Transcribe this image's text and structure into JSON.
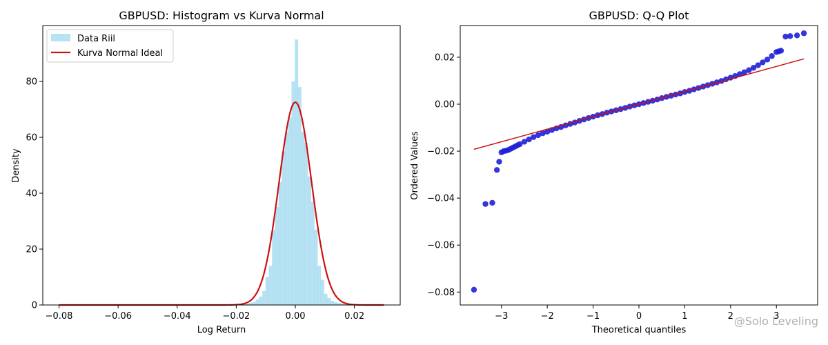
{
  "watermark": "@Solo Leveling",
  "chart_data": [
    {
      "type": "histogram",
      "title": "GBPUSD: Histogram vs Kurva Normal",
      "xlabel": "Log Return",
      "ylabel": "Density",
      "xlim": [
        -0.0855,
        0.0355
      ],
      "ylim": [
        0,
        100
      ],
      "xticks": [
        -0.08,
        -0.06,
        -0.04,
        -0.02,
        0.0,
        0.02
      ],
      "xtick_labels": [
        "−0.08",
        "−0.06",
        "−0.04",
        "−0.02",
        "0.00",
        "0.02"
      ],
      "yticks": [
        0,
        20,
        40,
        60,
        80
      ],
      "ytick_labels": [
        "0",
        "20",
        "40",
        "60",
        "80"
      ],
      "legend_position": "top-left",
      "colors": {
        "bars": "#87ceeb",
        "curve": "#cc1111"
      },
      "histogram": {
        "name": "Data Riil",
        "bin_width": 0.0011,
        "bins": [
          {
            "x0": -0.02,
            "density": 0.3
          },
          {
            "x0": -0.0189,
            "density": 0.4
          },
          {
            "x0": -0.0178,
            "density": 0.5
          },
          {
            "x0": -0.0167,
            "density": 0.6
          },
          {
            "x0": -0.0156,
            "density": 0.8
          },
          {
            "x0": -0.0145,
            "density": 1.0
          },
          {
            "x0": -0.0134,
            "density": 2
          },
          {
            "x0": -0.0123,
            "density": 3
          },
          {
            "x0": -0.0112,
            "density": 5
          },
          {
            "x0": -0.0101,
            "density": 10
          },
          {
            "x0": -0.009,
            "density": 14
          },
          {
            "x0": -0.0079,
            "density": 27
          },
          {
            "x0": -0.0068,
            "density": 35
          },
          {
            "x0": -0.0057,
            "density": 44
          },
          {
            "x0": -0.0046,
            "density": 55
          },
          {
            "x0": -0.0035,
            "density": 62
          },
          {
            "x0": -0.0024,
            "density": 67
          },
          {
            "x0": -0.0013,
            "density": 80
          },
          {
            "x0": -0.0002,
            "density": 95
          },
          {
            "x0": 0.0009,
            "density": 78
          },
          {
            "x0": 0.002,
            "density": 62
          },
          {
            "x0": 0.0031,
            "density": 58
          },
          {
            "x0": 0.0042,
            "density": 46
          },
          {
            "x0": 0.0053,
            "density": 37
          },
          {
            "x0": 0.0064,
            "density": 27
          },
          {
            "x0": 0.0075,
            "density": 14
          },
          {
            "x0": 0.0086,
            "density": 9
          },
          {
            "x0": 0.0097,
            "density": 4
          },
          {
            "x0": 0.0108,
            "density": 2.5
          },
          {
            "x0": 0.0119,
            "density": 1.5
          },
          {
            "x0": 0.013,
            "density": 1.0
          },
          {
            "x0": 0.0141,
            "density": 0.8
          },
          {
            "x0": 0.0152,
            "density": 0.6
          },
          {
            "x0": 0.0163,
            "density": 0.4
          },
          {
            "x0": 0.0174,
            "density": 0.3
          }
        ]
      },
      "normal_curve": {
        "name": "Kurva Normal Ideal",
        "mean": 0.0,
        "std": 0.0055,
        "x_range": [
          -0.08,
          0.03
        ]
      }
    },
    {
      "type": "scatter",
      "title": "GBPUSD: Q-Q Plot",
      "xlabel": "Theoretical quantiles",
      "ylabel": "Ordered Values",
      "xlim": [
        -3.9,
        3.9
      ],
      "ylim": [
        -0.0855,
        0.0335
      ],
      "xticks": [
        -3,
        -2,
        -1,
        0,
        1,
        2,
        3
      ],
      "xtick_labels": [
        "−3",
        "−2",
        "−1",
        "0",
        "1",
        "2",
        "3"
      ],
      "yticks": [
        -0.08,
        -0.06,
        -0.04,
        -0.02,
        0.0,
        0.02
      ],
      "ytick_labels": [
        "−0.08",
        "−0.06",
        "−0.04",
        "−0.02",
        "0.00",
        "0.02"
      ],
      "colors": {
        "points": "#1f1fd6",
        "line": "#cc1111"
      },
      "reference_line": {
        "x": [
          -3.6,
          3.6
        ],
        "y": [
          -0.0192,
          0.0193
        ]
      },
      "points": [
        [
          -3.6,
          -0.079
        ],
        [
          -3.35,
          -0.0425
        ],
        [
          -3.2,
          -0.042
        ],
        [
          -3.1,
          -0.028
        ],
        [
          -3.05,
          -0.0245
        ],
        [
          -3.0,
          -0.0205
        ],
        [
          -2.95,
          -0.02
        ],
        [
          -2.9,
          -0.0198
        ],
        [
          -2.85,
          -0.0195
        ],
        [
          -2.8,
          -0.019
        ],
        [
          -2.75,
          -0.0185
        ],
        [
          -2.7,
          -0.018
        ],
        [
          -2.65,
          -0.0175
        ],
        [
          -2.6,
          -0.017
        ],
        [
          -2.5,
          -0.016
        ],
        [
          -2.4,
          -0.015
        ],
        [
          -2.3,
          -0.014
        ],
        [
          -2.2,
          -0.0132
        ],
        [
          -2.1,
          -0.0124
        ],
        [
          -2.0,
          -0.0117
        ],
        [
          -1.9,
          -0.011
        ],
        [
          -1.8,
          -0.0103
        ],
        [
          -1.7,
          -0.0097
        ],
        [
          -1.6,
          -0.009
        ],
        [
          -1.5,
          -0.0084
        ],
        [
          -1.4,
          -0.0078
        ],
        [
          -1.3,
          -0.0071
        ],
        [
          -1.2,
          -0.0065
        ],
        [
          -1.1,
          -0.0059
        ],
        [
          -1.0,
          -0.0053
        ],
        [
          -0.9,
          -0.0047
        ],
        [
          -0.8,
          -0.0042
        ],
        [
          -0.7,
          -0.0036
        ],
        [
          -0.6,
          -0.0031
        ],
        [
          -0.5,
          -0.0026
        ],
        [
          -0.4,
          -0.0021
        ],
        [
          -0.3,
          -0.0016
        ],
        [
          -0.2,
          -0.001
        ],
        [
          -0.1,
          -0.0005
        ],
        [
          0.0,
          0.0
        ],
        [
          0.1,
          0.0005
        ],
        [
          0.2,
          0.001
        ],
        [
          0.3,
          0.0015
        ],
        [
          0.4,
          0.002
        ],
        [
          0.5,
          0.0026
        ],
        [
          0.6,
          0.0031
        ],
        [
          0.7,
          0.0036
        ],
        [
          0.8,
          0.0041
        ],
        [
          0.9,
          0.0046
        ],
        [
          1.0,
          0.0052
        ],
        [
          1.1,
          0.0057
        ],
        [
          1.2,
          0.0063
        ],
        [
          1.3,
          0.0069
        ],
        [
          1.4,
          0.0075
        ],
        [
          1.5,
          0.0081
        ],
        [
          1.6,
          0.0087
        ],
        [
          1.7,
          0.0093
        ],
        [
          1.8,
          0.0099
        ],
        [
          1.9,
          0.0106
        ],
        [
          2.0,
          0.0113
        ],
        [
          2.1,
          0.012
        ],
        [
          2.2,
          0.0128
        ],
        [
          2.3,
          0.0136
        ],
        [
          2.4,
          0.0145
        ],
        [
          2.5,
          0.0155
        ],
        [
          2.6,
          0.0166
        ],
        [
          2.7,
          0.0178
        ],
        [
          2.8,
          0.019
        ],
        [
          2.9,
          0.0205
        ],
        [
          3.0,
          0.0222
        ],
        [
          3.05,
          0.0225
        ],
        [
          3.1,
          0.0228
        ],
        [
          3.2,
          0.0288
        ],
        [
          3.3,
          0.029
        ],
        [
          3.45,
          0.0293
        ],
        [
          3.6,
          0.0302
        ]
      ]
    }
  ]
}
